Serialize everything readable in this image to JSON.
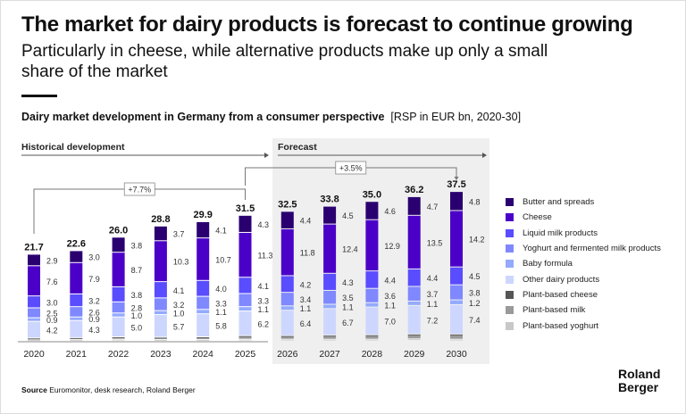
{
  "header": {
    "title": "The market for dairy products is forecast to continue growing",
    "subtitle": "Particularly in cheese, while alternative products make up only a small share of the market"
  },
  "chart_title": {
    "main": "Dairy market development in Germany from a consumer perspective",
    "unit": "[RSP in EUR bn, 2020-30]"
  },
  "source": {
    "label": "Source",
    "text": " Euromonitor, desk research, Roland Berger"
  },
  "logo": {
    "line1": "Roland",
    "line2": "Berger"
  },
  "chart_data": {
    "type": "bar",
    "stacked": true,
    "title": "Dairy market development in Germany from a consumer perspective",
    "ylabel": "RSP in EUR bn",
    "phases": [
      {
        "label": "Historical development"
      },
      {
        "label": "Forecast"
      }
    ],
    "cagr": [
      {
        "label": "+7.7%",
        "from": "2020",
        "to": "2025"
      },
      {
        "label": "+3.5%",
        "from": "2025",
        "to": "2030"
      }
    ],
    "categories": [
      "2020",
      "2021",
      "2022",
      "2023",
      "2024",
      "2025",
      "2026",
      "2027",
      "2028",
      "2029",
      "2030"
    ],
    "totals": [
      "21.7",
      "22.6",
      "26.0",
      "28.8",
      "29.9",
      "31.5",
      "32.5",
      "33.8",
      "35.0",
      "36.2",
      "37.5"
    ],
    "series": [
      {
        "name": "Butter and spreads",
        "color": "#2a0070",
        "labeled": true,
        "values": [
          2.9,
          3.0,
          3.8,
          3.7,
          4.1,
          4.3,
          4.4,
          4.5,
          4.6,
          4.7,
          4.8
        ]
      },
      {
        "name": "Cheese",
        "color": "#4b00c8",
        "labeled": true,
        "values": [
          7.6,
          7.9,
          8.7,
          10.3,
          10.7,
          11.3,
          11.8,
          12.4,
          12.9,
          13.5,
          14.2
        ]
      },
      {
        "name": "Liquid milk products",
        "color": "#5a4cff",
        "labeled": true,
        "values": [
          3.0,
          3.2,
          3.8,
          4.1,
          4.0,
          4.1,
          4.2,
          4.3,
          4.4,
          4.4,
          4.5
        ]
      },
      {
        "name": "Yoghurt and fermented milk products",
        "color": "#7f88ff",
        "labeled": true,
        "values": [
          2.5,
          2.6,
          2.8,
          3.2,
          3.3,
          3.3,
          3.4,
          3.5,
          3.6,
          3.7,
          3.8
        ]
      },
      {
        "name": "Baby formula",
        "color": "#93aaff",
        "labeled": true,
        "values": [
          0.9,
          0.9,
          1.0,
          1.0,
          1.1,
          1.1,
          1.1,
          1.1,
          1.1,
          1.1,
          1.2
        ]
      },
      {
        "name": "Other dairy products",
        "color": "#cdd6ff",
        "labeled": true,
        "values": [
          4.2,
          4.3,
          5.0,
          5.7,
          5.8,
          6.2,
          6.4,
          6.7,
          7.0,
          7.2,
          7.4
        ]
      },
      {
        "name": "Plant-based cheese",
        "color": "#555555",
        "labeled": false,
        "values": [
          0.1,
          0.1,
          0.1,
          0.1,
          0.1,
          0.1,
          0.1,
          0.1,
          0.1,
          0.1,
          0.1
        ]
      },
      {
        "name": "Plant-based milk",
        "color": "#9a9a9a",
        "labeled": false,
        "values": [
          0.3,
          0.4,
          0.5,
          0.5,
          0.6,
          0.8,
          0.8,
          0.9,
          1.0,
          1.1,
          1.2
        ]
      },
      {
        "name": "Plant-based yoghurt",
        "color": "#c8c8c8",
        "labeled": false,
        "values": [
          0.2,
          0.2,
          0.3,
          0.2,
          0.2,
          0.3,
          0.3,
          0.3,
          0.3,
          0.4,
          0.3
        ]
      }
    ],
    "legend_position": "right"
  }
}
